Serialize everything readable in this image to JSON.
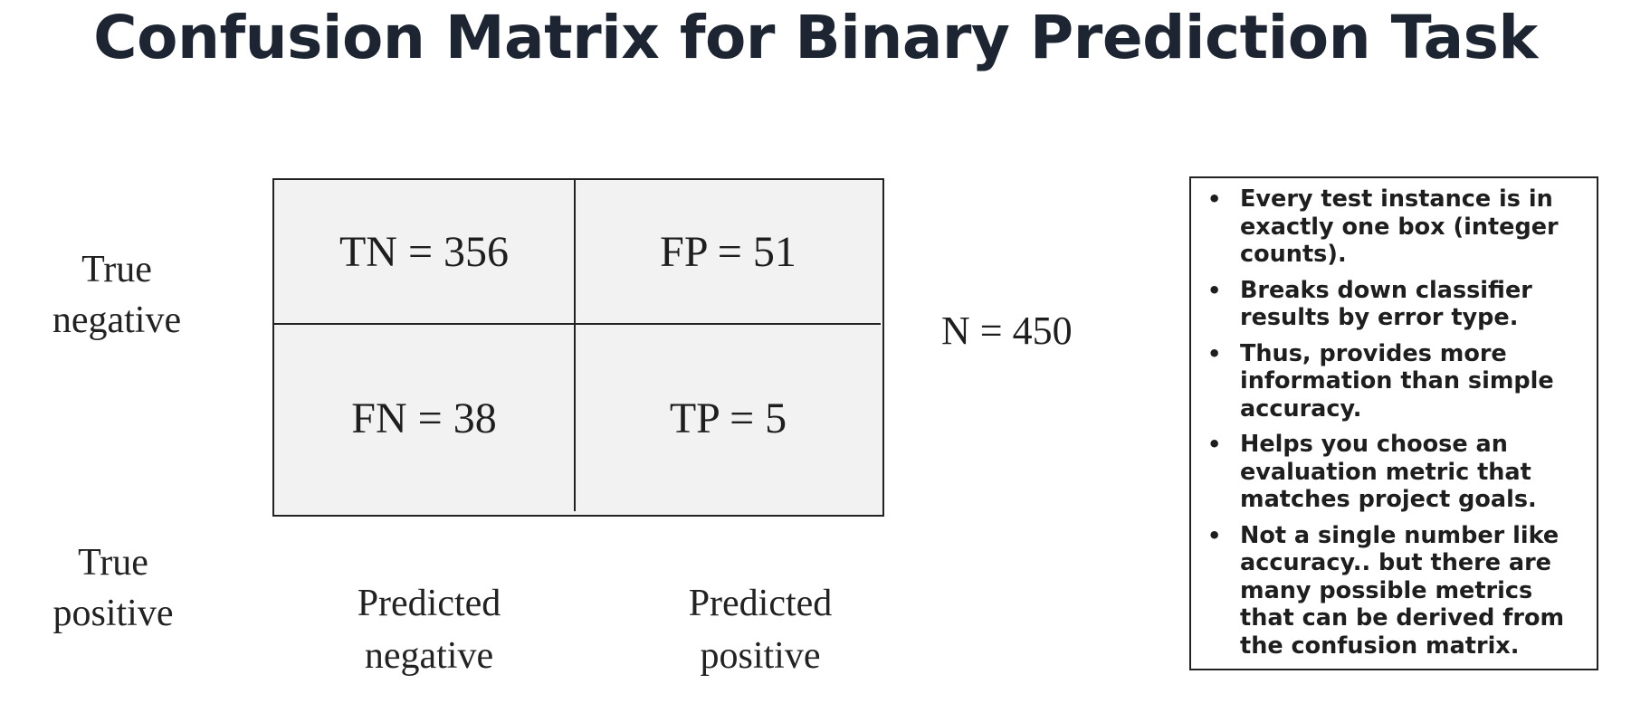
{
  "title": "Confusion Matrix for Binary Prediction Task",
  "row_labels": {
    "negative": [
      "True",
      "negative"
    ],
    "positive": [
      "True",
      "positive"
    ]
  },
  "column_labels": {
    "negative": [
      "Predicted",
      "negative"
    ],
    "positive": [
      "Predicted",
      "positive"
    ]
  },
  "matrix": {
    "tn": "TN = 356",
    "fp": "FP = 51",
    "fn": "FN = 38",
    "tp": "TP = 5"
  },
  "total": "N = 450",
  "notes": [
    "Every test instance is in exactly one box (integer counts).",
    "Breaks down classifier results by error type.",
    "Thus, provides more information than simple accuracy.",
    "Helps you choose an evaluation metric that matches project goals.",
    "Not a single number like accuracy.. but there are many possible metrics that can be derived from the confusion matrix."
  ],
  "bullet_glyph": "•"
}
